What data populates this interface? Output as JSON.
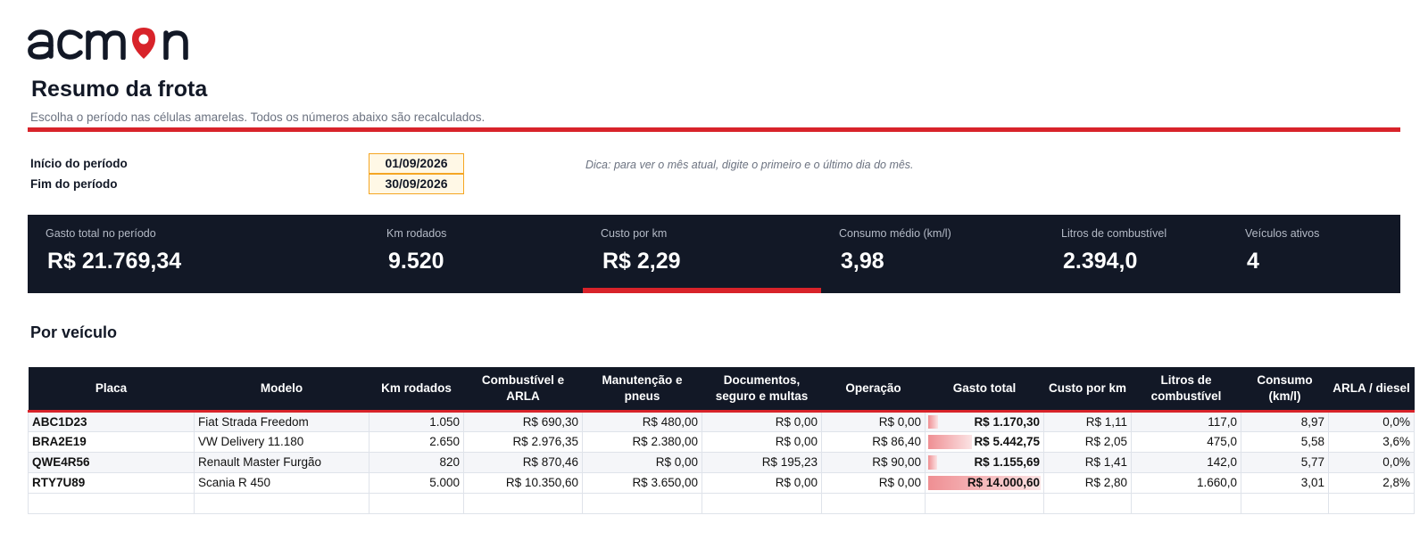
{
  "brand": {
    "logo_text": "acmon",
    "accent": "#d8232a",
    "dark": "#121826",
    "highlight": "#f5a623"
  },
  "header": {
    "title": "Resumo da frota",
    "subtitle": "Escolha o período nas células amarelas. Todos os números abaixo são recalculados."
  },
  "period": {
    "start_label": "Início do período",
    "start_value": "01/09/2026",
    "end_label": "Fim do período",
    "end_value": "30/09/2026",
    "hint": "Dica: para ver o mês atual, digite o primeiro e o último dia do mês."
  },
  "kpis": [
    {
      "label": "Gasto total no período",
      "value": "R$ 21.769,34"
    },
    {
      "label": "Km rodados",
      "value": "9.520"
    },
    {
      "label": "Custo por km",
      "value": "R$ 2,29"
    },
    {
      "label": "Consumo médio (km/l)",
      "value": "3,98"
    },
    {
      "label": "Litros de combustível",
      "value": "2.394,0"
    },
    {
      "label": "Veículos ativos",
      "value": "4"
    }
  ],
  "section": {
    "title": "Por veículo"
  },
  "table": {
    "headers": [
      "Placa",
      "Modelo",
      "Km rodados",
      "Combustível e ARLA",
      "Manutenção e pneus",
      "Documentos, seguro e multas",
      "Operação",
      "Gasto total",
      "Custo por km",
      "Litros de combustível",
      "Consumo (km/l)",
      "ARLA / diesel"
    ],
    "rows": [
      {
        "placa": "ABC1D23",
        "modelo": "Fiat Strada Freedom",
        "km": "1.050",
        "combustivel": "R$ 690,30",
        "manutencao": "R$ 480,00",
        "documentos": "R$ 0,00",
        "operacao": "R$ 0,00",
        "total": "R$ 1.170,30",
        "total_share": 0.0836,
        "custo_km": "R$ 1,11",
        "litros": "117,0",
        "consumo": "8,97",
        "arla": "0,0%"
      },
      {
        "placa": "BRA2E19",
        "modelo": "VW Delivery 11.180",
        "km": "2.650",
        "combustivel": "R$ 2.976,35",
        "manutencao": "R$ 2.380,00",
        "documentos": "R$ 0,00",
        "operacao": "R$ 86,40",
        "total": "R$ 5.442,75",
        "total_share": 0.3888,
        "custo_km": "R$ 2,05",
        "litros": "475,0",
        "consumo": "5,58",
        "arla": "3,6%"
      },
      {
        "placa": "QWE4R56",
        "modelo": "Renault Master Furgão",
        "km": "820",
        "combustivel": "R$ 870,46",
        "manutencao": "R$ 0,00",
        "documentos": "R$ 195,23",
        "operacao": "R$ 90,00",
        "total": "R$ 1.155,69",
        "total_share": 0.0826,
        "custo_km": "R$ 1,41",
        "litros": "142,0",
        "consumo": "5,77",
        "arla": "0,0%"
      },
      {
        "placa": "RTY7U89",
        "modelo": "Scania R 450",
        "km": "5.000",
        "combustivel": "R$ 10.350,60",
        "manutencao": "R$ 3.650,00",
        "documentos": "R$ 0,00",
        "operacao": "R$ 0,00",
        "total": "R$ 14.000,60",
        "total_share": 1.0,
        "custo_km": "R$ 2,80",
        "litros": "1.660,0",
        "consumo": "3,01",
        "arla": "2,8%"
      }
    ]
  }
}
